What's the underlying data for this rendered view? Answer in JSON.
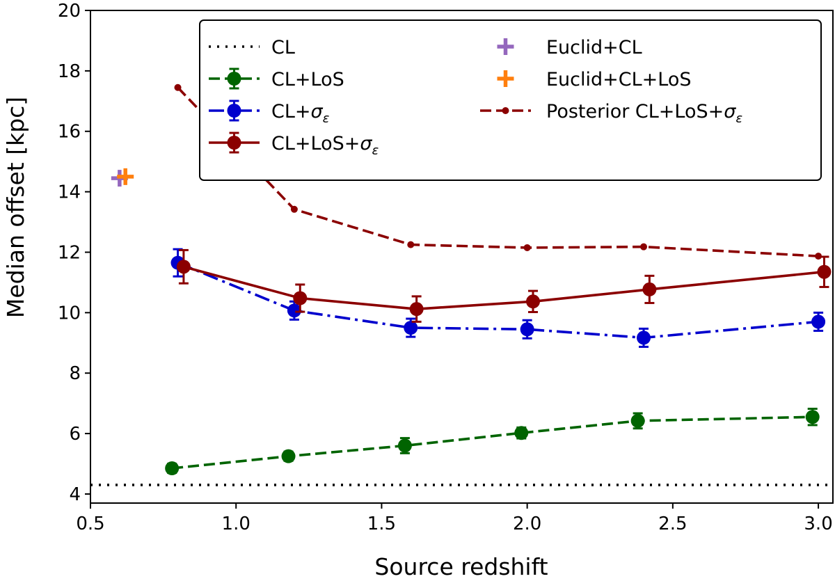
{
  "chart_data": {
    "type": "line",
    "title": "",
    "xlabel": "Source redshift",
    "ylabel": "Median offset [kpc]",
    "xlim": [
      0.5,
      3.05
    ],
    "ylim": [
      3.7,
      20.0
    ],
    "xticks": [
      0.5,
      1.0,
      1.5,
      2.0,
      2.5,
      3.0
    ],
    "xtick_labels": [
      "0.5",
      "1.0",
      "1.5",
      "2.0",
      "2.5",
      "3.0"
    ],
    "yticks": [
      4,
      6,
      8,
      10,
      12,
      14,
      16,
      18,
      20
    ],
    "ytick_labels": [
      "4",
      "6",
      "8",
      "10",
      "12",
      "14",
      "16",
      "18",
      "20"
    ],
    "grid": false,
    "legend_position": "top-right",
    "series": [
      {
        "name": "CL",
        "style": "dotted",
        "color": "#000000",
        "y_constant": 4.3
      },
      {
        "name": "CL+LoS",
        "style": "dashed",
        "color": "#006400",
        "marker": "circle",
        "x": [
          0.78,
          1.18,
          1.58,
          1.98,
          2.38,
          2.98
        ],
        "y": [
          4.85,
          5.25,
          5.6,
          6.02,
          6.42,
          6.55
        ],
        "yerr": [
          0.15,
          0.15,
          0.25,
          0.18,
          0.25,
          0.27
        ]
      },
      {
        "name": "CL+σε",
        "label_main": "CL+",
        "label_sym": "σ",
        "label_sub": "ε",
        "style": "dashdot",
        "color": "#0000cd",
        "marker": "circle",
        "x": [
          0.8,
          1.2,
          1.6,
          2.0,
          2.4,
          3.0
        ],
        "y": [
          11.65,
          10.07,
          9.5,
          9.45,
          9.17,
          9.7
        ],
        "yerr": [
          0.45,
          0.3,
          0.3,
          0.3,
          0.3,
          0.3
        ]
      },
      {
        "name": "CL+LoS+σε",
        "label_main": "CL+LoS+",
        "label_sym": "σ",
        "label_sub": "ε",
        "style": "solid",
        "color": "#8b0000",
        "marker": "circle",
        "x": [
          0.82,
          1.22,
          1.62,
          2.02,
          2.42,
          3.02
        ],
        "y": [
          11.52,
          10.48,
          10.12,
          10.37,
          10.77,
          11.35
        ],
        "yerr": [
          0.55,
          0.45,
          0.42,
          0.35,
          0.45,
          0.5
        ]
      },
      {
        "name": "Euclid+CL",
        "style": "marker",
        "color": "#9467bd",
        "marker": "plus",
        "x": [
          0.6
        ],
        "y": [
          14.45
        ]
      },
      {
        "name": "Euclid+CL+LoS",
        "style": "marker",
        "color": "#ff7f0e",
        "marker": "plus",
        "x": [
          0.62
        ],
        "y": [
          14.5
        ]
      },
      {
        "name": "Posterior CL+LoS+σε",
        "label_main": "Posterior CL+LoS+",
        "label_sym": "σ",
        "label_sub": "ε",
        "style": "dashed",
        "color": "#8b0000",
        "marker": "small-circle",
        "x": [
          0.8,
          1.2,
          1.6,
          2.0,
          2.4,
          3.0
        ],
        "y": [
          17.45,
          13.42,
          12.25,
          12.15,
          12.18,
          11.87
        ]
      }
    ]
  }
}
